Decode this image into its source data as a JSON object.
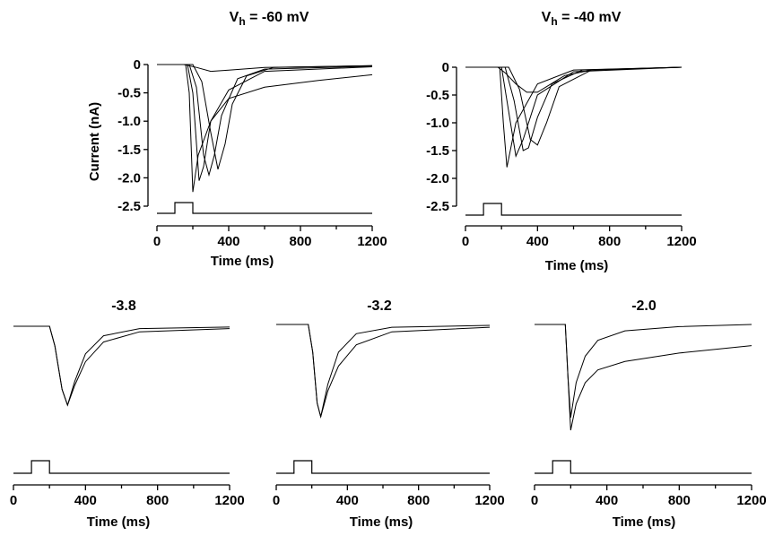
{
  "chart_data": [
    {
      "type": "line",
      "title": "Vh = -60 mV",
      "title_main": "V",
      "title_sub": "h",
      "title_rest": " = -60 mV",
      "xlabel": "Time (ms)",
      "ylabel": "Current (nA)",
      "xlim": [
        0,
        1200
      ],
      "ylim": [
        -2.7,
        0.05
      ],
      "x_ticks": [
        "0",
        "400",
        "800",
        "1200"
      ],
      "y_ticks": [
        "0",
        "-0.5",
        "-1.0",
        "-1.5",
        "-2.0",
        "-2.5"
      ],
      "series": [
        {
          "x": [
            0,
            150,
            220,
            300,
            400,
            600,
            1200
          ],
          "y": [
            0,
            0,
            -0.05,
            -0.12,
            -0.1,
            -0.05,
            -0.02
          ]
        },
        {
          "x": [
            0,
            160,
            180,
            200,
            230,
            300,
            400,
            600,
            900,
            1200
          ],
          "y": [
            0,
            0,
            -0.5,
            -2.25,
            -1.6,
            -1.0,
            -0.6,
            -0.4,
            -0.28,
            -0.18
          ]
        },
        {
          "x": [
            0,
            170,
            200,
            235,
            260,
            300,
            400,
            600,
            1200
          ],
          "y": [
            0,
            0,
            -0.5,
            -2.05,
            -1.8,
            -1.0,
            -0.45,
            -0.12,
            -0.04
          ]
        },
        {
          "x": [
            0,
            180,
            220,
            260,
            290,
            320,
            360,
            450,
            600,
            1200
          ],
          "y": [
            0,
            0,
            -0.4,
            -1.6,
            -1.95,
            -1.6,
            -0.9,
            -0.25,
            -0.08,
            -0.03
          ]
        },
        {
          "x": [
            0,
            200,
            250,
            300,
            340,
            380,
            420,
            500,
            650,
            1200
          ],
          "y": [
            0,
            0,
            -0.3,
            -1.2,
            -1.85,
            -1.4,
            -0.7,
            -0.2,
            -0.05,
            -0.02
          ]
        }
      ],
      "stimulus": {
        "x": [
          0,
          100,
          100,
          200,
          200,
          1200
        ],
        "level": [
          0,
          0,
          1,
          1,
          0,
          0
        ]
      }
    },
    {
      "type": "line",
      "title": "Vh = -40 mV",
      "title_main": "V",
      "title_sub": "h",
      "title_rest": " = -40 mV",
      "xlabel": "Time (ms)",
      "ylabel": "",
      "xlim": [
        0,
        1200
      ],
      "ylim": [
        -2.7,
        0.05
      ],
      "x_ticks": [
        "0",
        "400",
        "800",
        "1200"
      ],
      "y_ticks": [
        "0",
        "-0.5",
        "-1.0",
        "-1.5",
        "-2.0",
        "-2.5"
      ],
      "series": [
        {
          "x": [
            0,
            180,
            220,
            280,
            340,
            400,
            450,
            550,
            700,
            1200
          ],
          "y": [
            0,
            0,
            -0.1,
            -0.3,
            -0.45,
            -0.45,
            -0.35,
            -0.15,
            -0.05,
            0
          ]
        },
        {
          "x": [
            0,
            190,
            210,
            230,
            280,
            400,
            600,
            1200
          ],
          "y": [
            0,
            0,
            -1.0,
            -1.8,
            -1.0,
            -0.3,
            -0.05,
            0
          ]
        },
        {
          "x": [
            0,
            200,
            240,
            280,
            320,
            400,
            600,
            1200
          ],
          "y": [
            0,
            0,
            -0.8,
            -1.6,
            -1.3,
            -0.5,
            -0.08,
            0
          ]
        },
        {
          "x": [
            0,
            220,
            270,
            320,
            350,
            400,
            480,
            650,
            1200
          ],
          "y": [
            0,
            0,
            -0.6,
            -1.5,
            -1.45,
            -0.9,
            -0.3,
            -0.05,
            0
          ]
        },
        {
          "x": [
            0,
            240,
            300,
            360,
            400,
            450,
            520,
            700,
            1200
          ],
          "y": [
            0,
            0,
            -0.4,
            -1.3,
            -1.4,
            -1.0,
            -0.35,
            -0.05,
            0
          ]
        }
      ],
      "stimulus": {
        "x": [
          0,
          100,
          100,
          200,
          200,
          1200
        ],
        "level": [
          0,
          0,
          1,
          1,
          0,
          0
        ]
      }
    },
    {
      "type": "line",
      "title": "-3.8",
      "xlabel": "Time (ms)",
      "xlim": [
        0,
        1200
      ],
      "ylim": [
        -1.05,
        0.05
      ],
      "x_ticks": [
        "0",
        "400",
        "800",
        "1200"
      ],
      "series": [
        {
          "x": [
            0,
            200,
            230,
            270,
            300,
            340,
            400,
            500,
            700,
            1200
          ],
          "y": [
            0,
            0,
            -0.25,
            -0.8,
            -1.0,
            -0.7,
            -0.35,
            -0.12,
            -0.03,
            -0.01
          ]
        },
        {
          "x": [
            0,
            200,
            230,
            270,
            300,
            340,
            400,
            500,
            700,
            1200
          ],
          "y": [
            0,
            0,
            -0.25,
            -0.8,
            -1.0,
            -0.75,
            -0.45,
            -0.2,
            -0.07,
            -0.03
          ]
        }
      ],
      "stimulus": {
        "x": [
          0,
          100,
          100,
          200,
          200,
          1200
        ],
        "level": [
          0,
          0,
          1,
          1,
          0,
          0
        ]
      }
    },
    {
      "type": "line",
      "title": "-3.2",
      "xlabel": "Time (ms)",
      "xlim": [
        0,
        1200
      ],
      "ylim": [
        -1.05,
        0.05
      ],
      "x_ticks": [
        "0",
        "400",
        "800",
        "1200"
      ],
      "series": [
        {
          "x": [
            0,
            180,
            205,
            230,
            250,
            290,
            350,
            450,
            650,
            1200
          ],
          "y": [
            0,
            0,
            -0.3,
            -0.85,
            -1.0,
            -0.65,
            -0.3,
            -0.1,
            -0.03,
            -0.01
          ]
        },
        {
          "x": [
            0,
            180,
            205,
            230,
            250,
            290,
            350,
            450,
            650,
            1200
          ],
          "y": [
            0,
            0,
            -0.3,
            -0.85,
            -1.0,
            -0.72,
            -0.45,
            -0.22,
            -0.08,
            -0.03
          ]
        }
      ],
      "stimulus": {
        "x": [
          0,
          100,
          100,
          200,
          200,
          1200
        ],
        "level": [
          0,
          0,
          1,
          1,
          0,
          0
        ]
      }
    },
    {
      "type": "line",
      "title": "-2.0",
      "xlabel": "Time (ms)",
      "xlim": [
        0,
        1200
      ],
      "ylim": [
        -1.05,
        0.05
      ],
      "x_ticks": [
        "0",
        "400",
        "800",
        "1200"
      ],
      "series": [
        {
          "x": [
            0,
            170,
            185,
            200,
            230,
            280,
            350,
            500,
            800,
            1200
          ],
          "y": [
            0,
            0,
            -0.5,
            -0.88,
            -0.55,
            -0.3,
            -0.15,
            -0.06,
            -0.02,
            0
          ]
        },
        {
          "x": [
            0,
            170,
            185,
            200,
            230,
            280,
            350,
            500,
            800,
            1200
          ],
          "y": [
            0,
            0,
            -0.5,
            -1.0,
            -0.75,
            -0.55,
            -0.43,
            -0.35,
            -0.27,
            -0.2
          ]
        }
      ],
      "stimulus": {
        "x": [
          0,
          100,
          100,
          200,
          200,
          1200
        ],
        "level": [
          0,
          0,
          1,
          1,
          0,
          0
        ]
      }
    }
  ]
}
